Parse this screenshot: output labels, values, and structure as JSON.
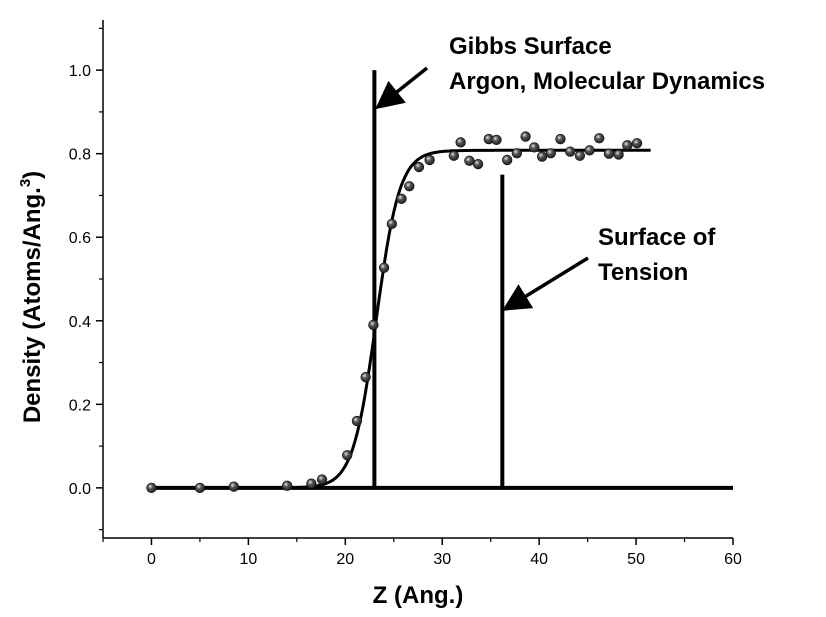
{
  "chart_data": {
    "type": "scatter",
    "xlabel": "Z (Ang.)",
    "ylabel_main": "Density (Atoms/Ang.",
    "ylabel_sup": "3",
    "ylabel_close": ")",
    "xlim": [
      -5,
      60
    ],
    "ylim": [
      -0.12,
      1.12
    ],
    "x_ticks": [
      0,
      10,
      20,
      30,
      40,
      50,
      60
    ],
    "y_ticks": [
      0.0,
      0.2,
      0.4,
      0.6,
      0.8,
      1.0
    ],
    "x_tick_labels": [
      "0",
      "10",
      "20",
      "30",
      "40",
      "50",
      "60"
    ],
    "y_tick_labels": [
      "0.0",
      "0.2",
      "0.4",
      "0.6",
      "0.8",
      "1.0"
    ],
    "grid": false,
    "colors": {
      "line": "#000000",
      "markers": "#222222"
    },
    "series": [
      {
        "kind": "points",
        "points": [
          [
            0,
            0.0
          ],
          [
            5,
            0.0
          ],
          [
            8.5,
            0.003
          ],
          [
            14,
            0.005
          ],
          [
            16.5,
            0.01
          ],
          [
            17.6,
            0.02
          ],
          [
            20.2,
            0.078
          ],
          [
            21.2,
            0.16
          ],
          [
            22.1,
            0.265
          ],
          [
            22.9,
            0.39
          ],
          [
            24,
            0.527
          ],
          [
            24.8,
            0.632
          ],
          [
            25.8,
            0.692
          ],
          [
            26.6,
            0.722
          ],
          [
            27.6,
            0.768
          ],
          [
            28.7,
            0.785
          ],
          [
            31.2,
            0.795
          ],
          [
            31.9,
            0.827
          ],
          [
            32.8,
            0.783
          ],
          [
            33.7,
            0.775
          ],
          [
            34.8,
            0.835
          ],
          [
            35.6,
            0.833
          ],
          [
            36.7,
            0.785
          ],
          [
            37.7,
            0.801
          ],
          [
            38.6,
            0.841
          ],
          [
            39.5,
            0.815
          ],
          [
            40.3,
            0.793
          ],
          [
            41.2,
            0.801
          ],
          [
            42.2,
            0.835
          ],
          [
            43.2,
            0.805
          ],
          [
            44.2,
            0.795
          ],
          [
            45.2,
            0.808
          ],
          [
            46.2,
            0.837
          ],
          [
            47.2,
            0.8
          ],
          [
            48.2,
            0.798
          ],
          [
            49.1,
            0.82
          ],
          [
            50.1,
            0.825
          ]
        ]
      },
      {
        "kind": "fit",
        "model": "sigmoid",
        "x_range": [
          0,
          51.5
        ],
        "params": {
          "plateau": 0.808,
          "center": 23.2,
          "width": 1.2
        }
      }
    ],
    "reference_lines": [
      {
        "name": "gibbs-line",
        "x": 23,
        "y_from": 0.0,
        "y_to": 1.0
      },
      {
        "name": "tension-line",
        "x": 36.2,
        "y_from": 0.0,
        "y_to": 0.75
      },
      {
        "name": "baseline",
        "x_from": 0,
        "x_to": 60,
        "y": 0.0
      }
    ],
    "annotations": [
      {
        "name": "gibbs-annotation",
        "lines": [
          "Gibbs Surface",
          "Argon, Molecular Dynamics"
        ]
      },
      {
        "name": "tension-annotation",
        "lines": [
          "Surface of",
          "Tension"
        ]
      }
    ]
  }
}
